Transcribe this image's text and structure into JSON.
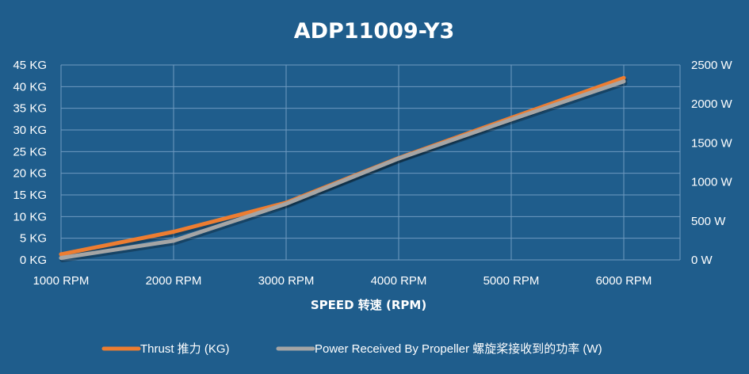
{
  "chart_data": {
    "type": "line",
    "title": "ADP11009-Y3",
    "xlabel": "SPEED 转速 (RPM)",
    "categories": [
      "1000 RPM",
      "2000 RPM",
      "3000 RPM",
      "4000 RPM",
      "5000 RPM",
      "6000 RPM"
    ],
    "y_left": {
      "ticks": [
        "0 KG",
        "5 KG",
        "10 KG",
        "15 KG",
        "20 KG",
        "25 KG",
        "30 KG",
        "35 KG",
        "40 KG",
        "45 KG"
      ],
      "range": [
        0,
        45
      ]
    },
    "y_right": {
      "ticks": [
        "0 W",
        "500 W",
        "1000 W",
        "1500 W",
        "2000 W",
        "2500 W"
      ],
      "range": [
        0,
        2500
      ]
    },
    "series": [
      {
        "name": "Thrust 推力 (KG)",
        "axis": "left",
        "color": "#ed7d31",
        "values": [
          1.3,
          6.5,
          13.2,
          23.5,
          32.8,
          42.0
        ]
      },
      {
        "name": "Power Received By Propeller 螺旋桨接收到的功率 (W)",
        "axis": "right",
        "color": "#a5a5a5",
        "values": [
          25,
          245,
          720,
          1300,
          1800,
          2290
        ]
      }
    ],
    "grid": true,
    "legend": "bottom",
    "colors": {
      "background": "#1f5d8c",
      "grid": "#6f9ac0",
      "text": "#ffffff"
    }
  }
}
